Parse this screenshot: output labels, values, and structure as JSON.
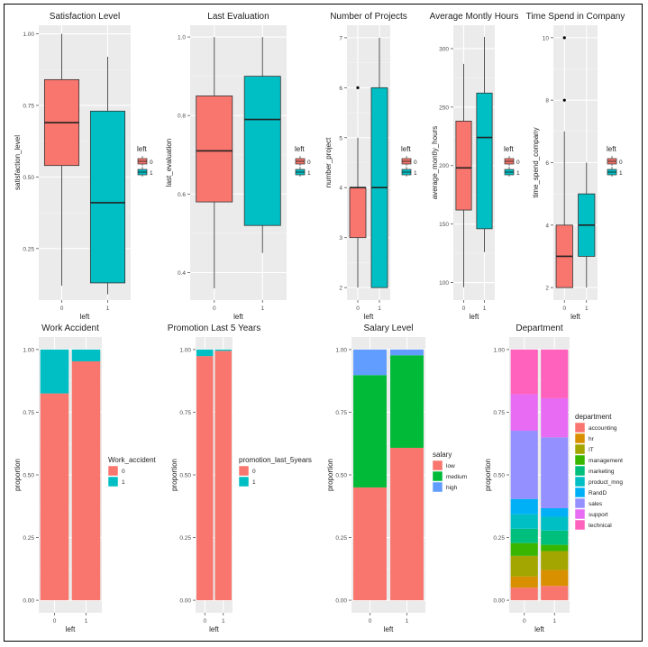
{
  "colors": {
    "group0": "#F8766D",
    "group1": "#00BFC4",
    "panel_bg": "#EBEBEB",
    "grid": "#FFFFFF",
    "salary": {
      "low": "#F8766D",
      "medium": "#00BA38",
      "high": "#619CFF"
    },
    "department": {
      "accounting": "#F8766D",
      "hr": "#D89000",
      "IT": "#A3A500",
      "management": "#39B600",
      "marketing": "#00BF7D",
      "product_mng": "#00BFC4",
      "RandD": "#00B0F6",
      "sales": "#9590FF",
      "support": "#E76BF3",
      "technical": "#FF62BC"
    }
  },
  "chart_data": [
    {
      "type": "box",
      "title": "Satisfaction Level",
      "xlabel": "left",
      "ylabel": "satisfaction_level",
      "categories": [
        "0",
        "1"
      ],
      "ylim": [
        0.07,
        1.03
      ],
      "yticks": [
        0.25,
        0.5,
        0.75,
        1.0
      ],
      "ytick_labels": [
        "0.25",
        "0.50",
        "0.75",
        "1.00"
      ],
      "legend": {
        "title": "left",
        "entries": [
          "0",
          "1"
        ],
        "position": "right"
      },
      "boxes": [
        {
          "group": "0",
          "min": 0.12,
          "q1": 0.54,
          "median": 0.69,
          "q3": 0.84,
          "max": 1.0,
          "outliers": []
        },
        {
          "group": "1",
          "min": 0.09,
          "q1": 0.13,
          "median": 0.41,
          "q3": 0.73,
          "max": 0.92,
          "outliers": []
        }
      ]
    },
    {
      "type": "box",
      "title": "Last Evaluation",
      "xlabel": "left",
      "ylabel": "last_evaluation",
      "categories": [
        "0",
        "1"
      ],
      "ylim": [
        0.33,
        1.03
      ],
      "yticks": [
        0.4,
        0.6,
        0.8,
        1.0
      ],
      "ytick_labels": [
        "0.4",
        "0.6",
        "0.8",
        "1.0"
      ],
      "legend": {
        "title": "left",
        "entries": [
          "0",
          "1"
        ],
        "position": "right"
      },
      "boxes": [
        {
          "group": "0",
          "min": 0.36,
          "q1": 0.58,
          "median": 0.71,
          "q3": 0.85,
          "max": 1.0,
          "outliers": []
        },
        {
          "group": "1",
          "min": 0.45,
          "q1": 0.52,
          "median": 0.79,
          "q3": 0.9,
          "max": 1.0,
          "outliers": []
        }
      ]
    },
    {
      "type": "box",
      "title": "Number of Projects",
      "xlabel": "left",
      "ylabel": "number_project",
      "categories": [
        "0",
        "1"
      ],
      "ylim": [
        1.75,
        7.25
      ],
      "yticks": [
        2,
        3,
        4,
        5,
        6,
        7
      ],
      "ytick_labels": [
        "2",
        "3",
        "4",
        "5",
        "6",
        "7"
      ],
      "legend": {
        "title": "left",
        "entries": [
          "0",
          "1"
        ],
        "position": "right"
      },
      "boxes": [
        {
          "group": "0",
          "min": 2,
          "q1": 3,
          "median": 4,
          "q3": 4,
          "max": 5,
          "outliers": [
            6
          ]
        },
        {
          "group": "1",
          "min": 2,
          "q1": 2,
          "median": 4,
          "q3": 6,
          "max": 7,
          "outliers": []
        }
      ]
    },
    {
      "type": "box",
      "title": "Average Montly Hours",
      "xlabel": "left",
      "ylabel": "average_montly_hours",
      "categories": [
        "0",
        "1"
      ],
      "ylim": [
        85,
        320
      ],
      "yticks": [
        100,
        150,
        200,
        250,
        300
      ],
      "ytick_labels": [
        "100",
        "150",
        "200",
        "250",
        "300"
      ],
      "legend": {
        "title": "left",
        "entries": [
          "0",
          "1"
        ],
        "position": "right"
      },
      "boxes": [
        {
          "group": "0",
          "min": 96,
          "q1": 162,
          "median": 198,
          "q3": 238,
          "max": 287,
          "outliers": []
        },
        {
          "group": "1",
          "min": 126,
          "q1": 146,
          "median": 224,
          "q3": 262,
          "max": 310,
          "outliers": []
        }
      ]
    },
    {
      "type": "box",
      "title": "Time Spend in Company",
      "xlabel": "left",
      "ylabel": "time_spend_company",
      "categories": [
        "0",
        "1"
      ],
      "ylim": [
        1.6,
        10.4
      ],
      "yticks": [
        2,
        4,
        6,
        8,
        10
      ],
      "ytick_labels": [
        "2",
        "4",
        "6",
        "8",
        "10"
      ],
      "legend": {
        "title": "left",
        "entries": [
          "0",
          "1"
        ],
        "position": "right"
      },
      "boxes": [
        {
          "group": "0",
          "min": 2,
          "q1": 2,
          "median": 3,
          "q3": 4,
          "max": 7,
          "outliers": [
            8,
            10
          ]
        },
        {
          "group": "1",
          "min": 2,
          "q1": 3,
          "median": 4,
          "q3": 5,
          "max": 6,
          "outliers": []
        }
      ]
    },
    {
      "type": "bar",
      "stacked": true,
      "title": "Work Accident",
      "xlabel": "left",
      "ylabel": "proportion",
      "categories": [
        "0",
        "1"
      ],
      "ylim": [
        -0.05,
        1.05
      ],
      "yticks": [
        0,
        0.25,
        0.5,
        0.75,
        1.0
      ],
      "ytick_labels": [
        "0.00",
        "0.25",
        "0.50",
        "0.75",
        "1.00"
      ],
      "legend": {
        "title": "Work_accident",
        "position": "right"
      },
      "series": [
        {
          "name": "0",
          "values": [
            0.825,
            0.953
          ]
        },
        {
          "name": "1",
          "values": [
            0.175,
            0.047
          ]
        }
      ]
    },
    {
      "type": "bar",
      "stacked": true,
      "title": "Promotion Last 5 Years",
      "xlabel": "left",
      "ylabel": "proportion",
      "categories": [
        "0",
        "1"
      ],
      "ylim": [
        -0.05,
        1.05
      ],
      "yticks": [
        0,
        0.25,
        0.5,
        0.75,
        1.0
      ],
      "ytick_labels": [
        "0.00",
        "0.25",
        "0.50",
        "0.75",
        "1.00"
      ],
      "legend": {
        "title": "promotion_last_5years",
        "position": "right"
      },
      "series": [
        {
          "name": "0",
          "values": [
            0.974,
            0.995
          ]
        },
        {
          "name": "1",
          "values": [
            0.026,
            0.005
          ]
        }
      ]
    },
    {
      "type": "bar",
      "stacked": true,
      "title": "Salary Level",
      "xlabel": "left",
      "ylabel": "proportion",
      "categories": [
        "0",
        "1"
      ],
      "ylim": [
        -0.05,
        1.05
      ],
      "yticks": [
        0,
        0.25,
        0.5,
        0.75,
        1.0
      ],
      "ytick_labels": [
        "0.00",
        "0.25",
        "0.50",
        "0.75",
        "1.00"
      ],
      "legend": {
        "title": "salary",
        "position": "right"
      },
      "series": [
        {
          "name": "low",
          "values": [
            0.45,
            0.608
          ]
        },
        {
          "name": "medium",
          "values": [
            0.448,
            0.369
          ]
        },
        {
          "name": "high",
          "values": [
            0.102,
            0.023
          ]
        }
      ]
    },
    {
      "type": "bar",
      "stacked": true,
      "title": "Department",
      "xlabel": "left",
      "ylabel": "proportion",
      "categories": [
        "0",
        "1"
      ],
      "ylim": [
        -0.05,
        1.05
      ],
      "yticks": [
        0,
        0.25,
        0.5,
        0.75,
        1.0
      ],
      "ytick_labels": [
        "0.00",
        "0.25",
        "0.50",
        "0.75",
        "1.00"
      ],
      "legend": {
        "title": "department",
        "position": "right"
      },
      "series": [
        {
          "name": "accounting",
          "values": [
            0.05,
            0.057
          ]
        },
        {
          "name": "hr",
          "values": [
            0.045,
            0.064
          ]
        },
        {
          "name": "IT",
          "values": [
            0.082,
            0.075
          ]
        },
        {
          "name": "management",
          "values": [
            0.051,
            0.025
          ]
        },
        {
          "name": "marketing",
          "values": [
            0.057,
            0.057
          ]
        },
        {
          "name": "product_mng",
          "values": [
            0.058,
            0.055
          ]
        },
        {
          "name": "RandD",
          "values": [
            0.061,
            0.034
          ]
        },
        {
          "name": "sales",
          "values": [
            0.272,
            0.283
          ]
        },
        {
          "name": "support",
          "values": [
            0.146,
            0.156
          ]
        },
        {
          "name": "technical",
          "values": [
            0.178,
            0.194
          ]
        }
      ]
    }
  ]
}
